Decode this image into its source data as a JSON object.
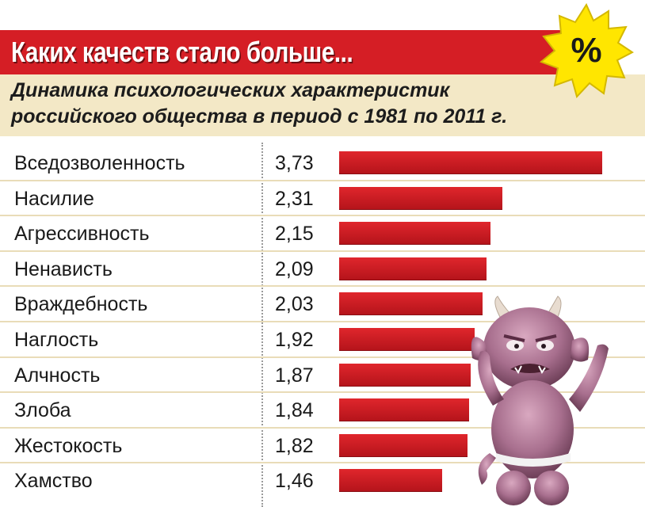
{
  "header": {
    "title": "Каких качеств стало больше...",
    "subtitle_line1": "Динамика психологических характеристик",
    "subtitle_line2": "российского общества в период с 1981 по 2011 г.",
    "badge_symbol": "%"
  },
  "colors": {
    "title_bg": "#d51e25",
    "subtitle_bg": "#f3e8c6",
    "bar": "#cc1d24",
    "badge_fill": "#ffe600"
  },
  "chart_data": {
    "type": "bar",
    "orientation": "horizontal",
    "title": "Каких качеств стало больше...",
    "subtitle": "Динамика психологических характеристик российского общества в период с 1981 по 2011 г.",
    "categories": [
      "Вседозволенность",
      "Насилие",
      "Агрессивность",
      "Ненависть",
      "Враждебность",
      "Наглость",
      "Алчность",
      "Злоба",
      "Жестокость",
      "Хамство"
    ],
    "values": [
      3.73,
      2.31,
      2.15,
      2.09,
      2.03,
      1.92,
      1.87,
      1.84,
      1.82,
      1.46
    ],
    "value_labels": [
      "3,73",
      "2,31",
      "2,15",
      "2,09",
      "2,03",
      "1,92",
      "1,87",
      "1,84",
      "1,82",
      "1,46"
    ],
    "xlabel": "",
    "ylabel": "",
    "grid": false
  }
}
